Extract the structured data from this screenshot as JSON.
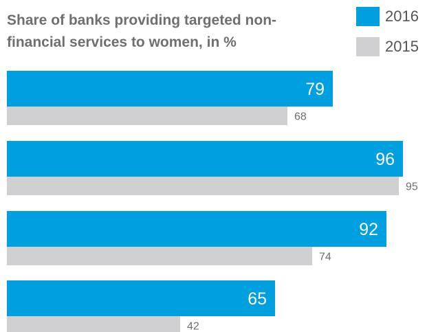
{
  "chart_data": {
    "type": "bar",
    "orientation": "horizontal",
    "title": "Share of banks providing targeted non-financial services to women, in %",
    "categories": [
      "",
      "",
      "",
      ""
    ],
    "series": [
      {
        "name": "2016",
        "values": [
          79,
          96,
          92,
          65
        ],
        "color": "#009fdf"
      },
      {
        "name": "2015",
        "values": [
          68,
          95,
          74,
          42
        ],
        "color": "#d0d0d2"
      }
    ],
    "xlim": [
      0,
      100
    ],
    "grid": false,
    "legend_position": "top-right"
  }
}
